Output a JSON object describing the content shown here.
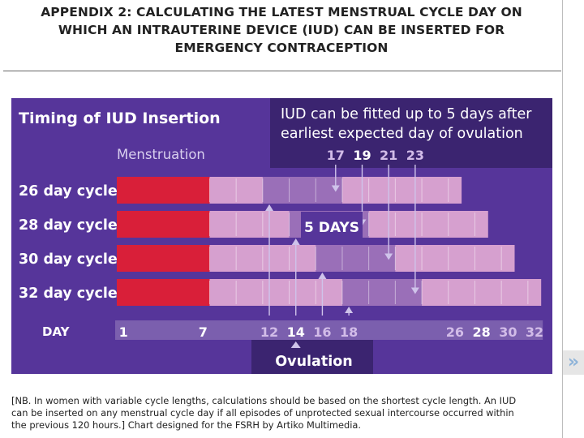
{
  "slide": {
    "title_lines": [
      "APPENDIX 2: CALCULATING THE LATEST MENSTRUAL CYCLE DAY ON",
      "WHICH AN INTRAUTERINE DEVICE (IUD) CAN BE INSERTED FOR",
      "EMERGENCY CONTRACEPTION"
    ],
    "footnote_lines": [
      "[NB. In women with variable cycle lengths, calculations should be based on the shortest cycle length. An IUD",
      "can be inserted on any menstrual cycle day if all episodes of unprotected sexual intercourse occurred within",
      "the previous 120 hours.] Chart designed for the FSRH by Artiko Multimedia."
    ],
    "nav_icon": "double-chevron-right-icon",
    "nav_glyph": "»"
  },
  "chart_data": {
    "type": "timeline",
    "title": "Timing of IUD Insertion",
    "callout_lines": [
      "IUD can be fitted up to 5 days after",
      "earliest expected day of ovulation"
    ],
    "menstruation_label": "Menstruation",
    "five_days_label": "5 DAYS",
    "ovulation_label": "Ovulation",
    "day_label": "DAY",
    "menstruation_days": [
      1,
      7
    ],
    "fit_window_days": 5,
    "ovulation_window_days": 6,
    "cycles": [
      {
        "label": "26 day cycle",
        "length": 26,
        "ovulation_start": 12,
        "latest_insertion": 17
      },
      {
        "label": "28 day cycle",
        "length": 28,
        "ovulation_start": 14,
        "latest_insertion": 19
      },
      {
        "label": "30 day cycle",
        "length": 30,
        "ovulation_start": 16,
        "latest_insertion": 21
      },
      {
        "label": "32 day cycle",
        "length": 32,
        "ovulation_start": 18,
        "latest_insertion": 23
      }
    ],
    "top_tick_labels": [
      {
        "day": 17,
        "text": "17"
      },
      {
        "day": 19,
        "text": "19"
      },
      {
        "day": 21,
        "text": "21"
      },
      {
        "day": 23,
        "text": "23"
      }
    ],
    "bottom_tick_labels": [
      {
        "day": 1,
        "text": "1"
      },
      {
        "day": 7,
        "text": "7"
      },
      {
        "day": 12,
        "text": "12"
      },
      {
        "day": 14,
        "text": "14"
      },
      {
        "day": 16,
        "text": "16"
      },
      {
        "day": 18,
        "text": "18"
      },
      {
        "day": 26,
        "text": "26"
      },
      {
        "day": 28,
        "text": "28"
      },
      {
        "day": 30,
        "text": "30"
      },
      {
        "day": 32,
        "text": "32"
      }
    ],
    "highlight_days": [
      1,
      7,
      14,
      19,
      28
    ],
    "colors": {
      "background": "#56359a",
      "callout_box": "#3b2470",
      "title_text": "#ffffff",
      "muted_text": "#d8cfee",
      "menstruation": "#d91f39",
      "bar": "#d6a0cf",
      "ovulation_window": "#9a6fb8",
      "day_strip": "#7b5fae",
      "day_number_highlight": "#ffffff",
      "day_number": "#d2bce8"
    }
  }
}
